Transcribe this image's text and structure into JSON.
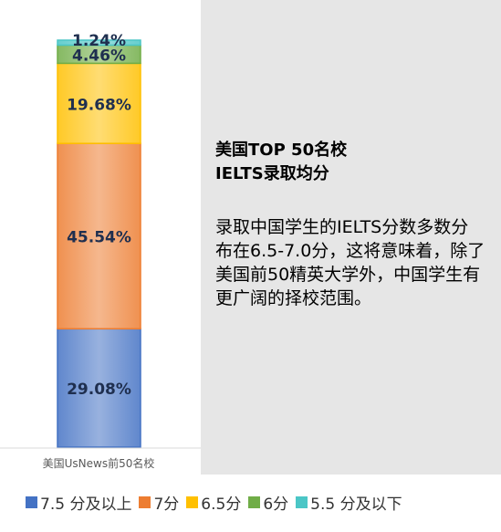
{
  "chart_data": {
    "type": "bar",
    "stacked": true,
    "categories": [
      "美国UsNews前50名校"
    ],
    "series": [
      {
        "name": "7.5 分及以上",
        "values": [
          29.08
        ],
        "label": "29.08%",
        "color": "#4472c4"
      },
      {
        "name": "7分",
        "values": [
          45.54
        ],
        "label": "45.54%",
        "color": "#ed7d31"
      },
      {
        "name": "6.5分",
        "values": [
          19.68
        ],
        "label": "19.68%",
        "color": "#ffc000"
      },
      {
        "name": "6分",
        "values": [
          4.46
        ],
        "label": "4.46%",
        "color": "#70ad47"
      },
      {
        "name": "5.5 分及以下",
        "values": [
          1.24
        ],
        "label": "1.24%",
        "color": "#4bc6c6"
      }
    ],
    "ylim": [
      0,
      100
    ],
    "legend_position": "bottom"
  },
  "info": {
    "title": "美国TOP 50名校\nIELTS录取均分",
    "body": "录取中国学生的IELTS分数多数分布在6.5-7.0分，这将意味着，除了美国前50精英大学外，中国学生有更广阔的择校范围。"
  }
}
